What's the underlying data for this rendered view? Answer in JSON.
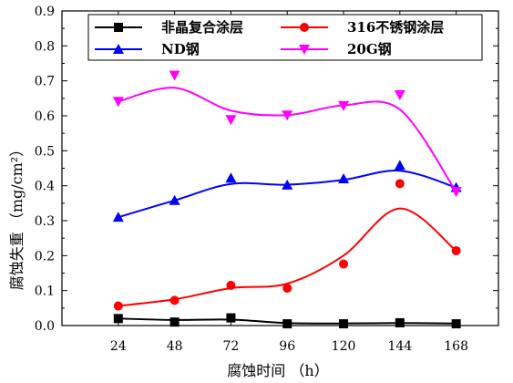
{
  "chart_data": {
    "type": "scatter",
    "xlabel": "腐蚀时间  （h）",
    "ylabel": "腐蚀失重  （mg/cm²）",
    "x_ticks": [
      24,
      48,
      72,
      96,
      120,
      144,
      168
    ],
    "y_ticks": [
      "0.0",
      "0.1",
      "0.2",
      "0.3",
      "0.4",
      "0.5",
      "0.6",
      "0.7",
      "0.8",
      "0.9"
    ],
    "xlim": [
      0,
      186
    ],
    "ylim": [
      0,
      0.9
    ],
    "grid": false,
    "legend_position": "top",
    "series": [
      {
        "name": "非晶复合涂层",
        "marker": "square",
        "color": "#000000",
        "x": [
          24,
          48,
          72,
          96,
          120,
          144,
          168
        ],
        "values": [
          0.02,
          0.01,
          0.022,
          0.005,
          0.005,
          0.008,
          0.005
        ],
        "curve": [
          0.02,
          0.016,
          0.017,
          0.007,
          0.006,
          0.007,
          0.006
        ]
      },
      {
        "name": "316不锈钢涂层",
        "marker": "circle",
        "color": "#ff0000",
        "x": [
          24,
          48,
          72,
          96,
          120,
          144,
          168
        ],
        "values": [
          0.056,
          0.072,
          0.115,
          0.107,
          0.176,
          0.406,
          0.214
        ],
        "curve": [
          0.056,
          0.075,
          0.107,
          0.12,
          0.2,
          0.335,
          0.214
        ]
      },
      {
        "name": "ND钢",
        "marker": "triangle-up",
        "color": "#0000ff",
        "x": [
          24,
          48,
          72,
          96,
          120,
          144,
          168
        ],
        "values": [
          0.31,
          0.358,
          0.422,
          0.402,
          0.42,
          0.458,
          0.395
        ],
        "curve": [
          0.31,
          0.358,
          0.405,
          0.403,
          0.417,
          0.443,
          0.395
        ]
      },
      {
        "name": "20G钢",
        "marker": "triangle-down",
        "color": "#ff00ff",
        "x": [
          24,
          48,
          72,
          96,
          120,
          144,
          168
        ],
        "values": [
          0.641,
          0.716,
          0.589,
          0.602,
          0.629,
          0.66,
          0.383
        ],
        "curve": [
          0.641,
          0.68,
          0.615,
          0.602,
          0.63,
          0.618,
          0.383
        ]
      }
    ]
  }
}
